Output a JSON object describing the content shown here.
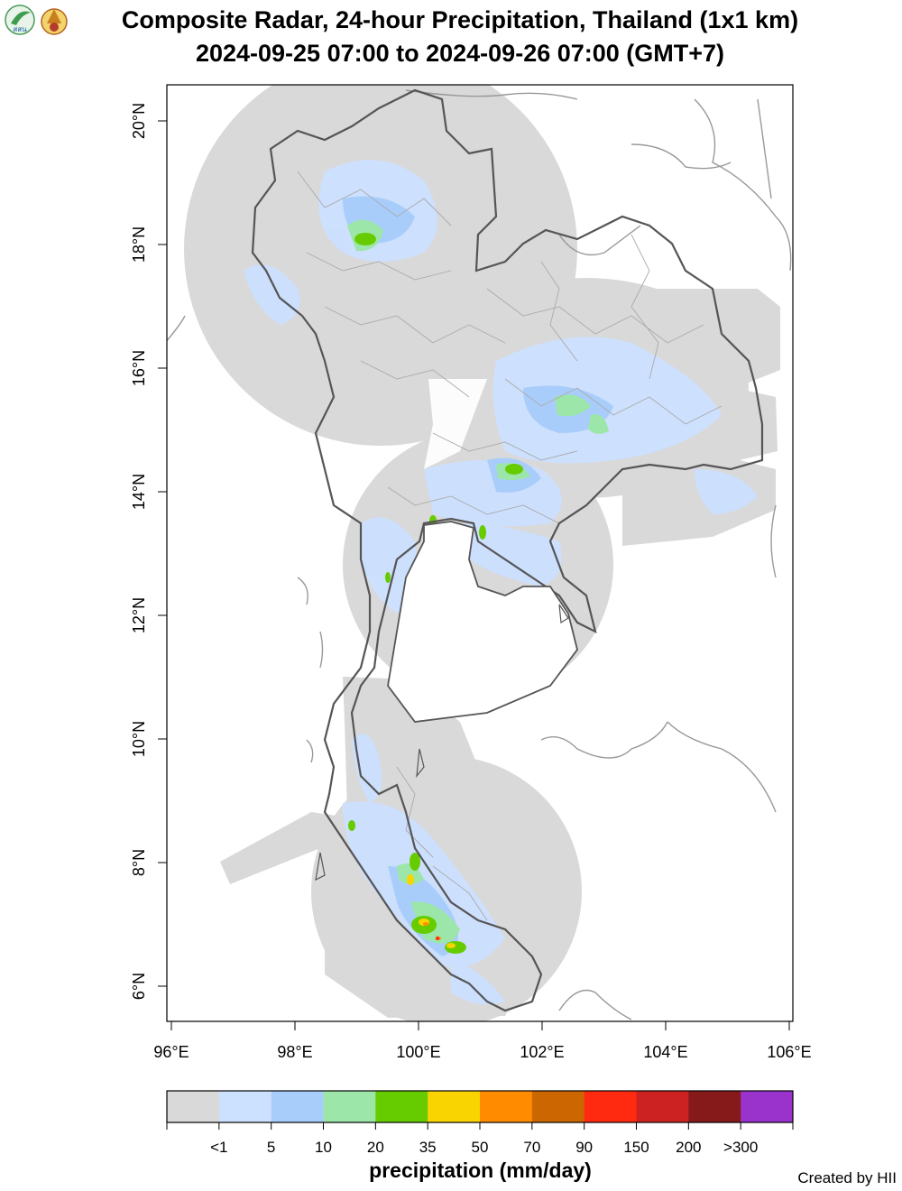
{
  "header": {
    "title_line1": "Composite Radar, 24-hour Precipitation, Thailand (1x1 km)",
    "title_line2": "2024-09-25 07:00 to 2024-09-26 07:00 (GMT+7)",
    "logo_text": "สสน"
  },
  "map": {
    "lon_ticks": [
      "96°E",
      "98°E",
      "100°E",
      "102°E",
      "104°E",
      "106°E"
    ],
    "lat_ticks": [
      "20°N",
      "18°N",
      "16°N",
      "14°N",
      "12°N",
      "10°N",
      "8°N",
      "6°N"
    ],
    "radar_coverage_color": "#d9d9d9",
    "country_border_color": "#555555",
    "province_border_color": "#aaaaaa"
  },
  "legend": {
    "colors": [
      "#d9d9d9",
      "#cce0ff",
      "#a9cdfb",
      "#9be6a8",
      "#66cc00",
      "#fad400",
      "#ff8c00",
      "#cc6600",
      "#ff2a10",
      "#cc2222",
      "#861a1a",
      "#9933cc"
    ],
    "labels": [
      "<1",
      "5",
      "10",
      "20",
      "35",
      "50",
      "70",
      "90",
      "150",
      "200",
      ">300"
    ],
    "title": "precipitation (mm/day)"
  },
  "footer": {
    "credit": "Created by HII"
  }
}
